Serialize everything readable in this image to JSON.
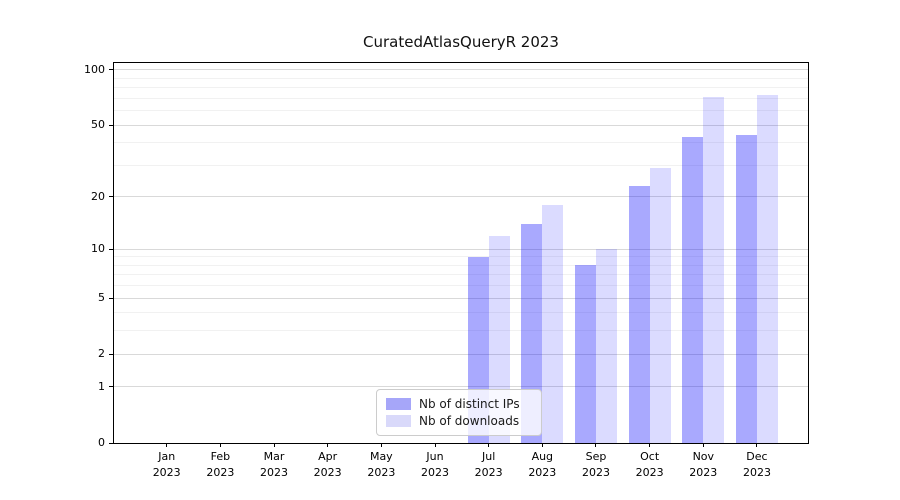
{
  "title": "CuratedAtlasQueryR 2023",
  "colors": {
    "ips_bar_solid": "#a8a8fe",
    "downloads_bar_solid": "#dcdcfe",
    "major_grid": "#d9d9d9",
    "minor_grid": "#f1f1f1",
    "axis": "#000000"
  },
  "chart_data": {
    "type": "bar",
    "title": "CuratedAtlasQueryR 2023",
    "categories": [
      "Jan 2023",
      "Feb 2023",
      "Mar 2023",
      "Apr 2023",
      "May 2023",
      "Jun 2023",
      "Jul 2023",
      "Aug 2023",
      "Sep 2023",
      "Oct 2023",
      "Nov 2023",
      "Dec 2023"
    ],
    "series": [
      {
        "name": "Nb of distinct IPs",
        "values": [
          0,
          0,
          0,
          0,
          0,
          0,
          9,
          14,
          8,
          23,
          43,
          44
        ],
        "fill": "#0202fc57",
        "legend_color": "#a6a6f9"
      },
      {
        "name": "Nb of downloads",
        "values": [
          0,
          0,
          0,
          0,
          0,
          0,
          12,
          18,
          10,
          29,
          71,
          73
        ],
        "fill": "#0202fc24",
        "legend_color": "#d9d9fa"
      }
    ],
    "yscale": "log10(1+v)",
    "ylim": [
      0,
      109
    ],
    "y_major_ticks": [
      0,
      1,
      2,
      5,
      10,
      20,
      50,
      100
    ],
    "y_minor_gridlines": [
      3,
      4,
      6,
      7,
      8,
      9,
      30,
      40,
      60,
      70,
      80,
      90
    ],
    "xlabel": "",
    "ylabel": "",
    "grid": true,
    "legend_position": "lower center"
  },
  "y_axis": {
    "tick_labels": [
      "100",
      "50",
      "20",
      "10",
      "5",
      "2",
      "1",
      "0"
    ]
  },
  "x_axis": {
    "ticks": [
      {
        "month": "Jan",
        "year": "2023"
      },
      {
        "month": "Feb",
        "year": "2023"
      },
      {
        "month": "Mar",
        "year": "2023"
      },
      {
        "month": "Apr",
        "year": "2023"
      },
      {
        "month": "May",
        "year": "2023"
      },
      {
        "month": "Jun",
        "year": "2023"
      },
      {
        "month": "Jul",
        "year": "2023"
      },
      {
        "month": "Aug",
        "year": "2023"
      },
      {
        "month": "Sep",
        "year": "2023"
      },
      {
        "month": "Oct",
        "year": "2023"
      },
      {
        "month": "Nov",
        "year": "2023"
      },
      {
        "month": "Dec",
        "year": "2023"
      }
    ]
  },
  "legend": {
    "items": [
      {
        "label": "Nb of distinct IPs"
      },
      {
        "label": "Nb of downloads"
      }
    ]
  }
}
